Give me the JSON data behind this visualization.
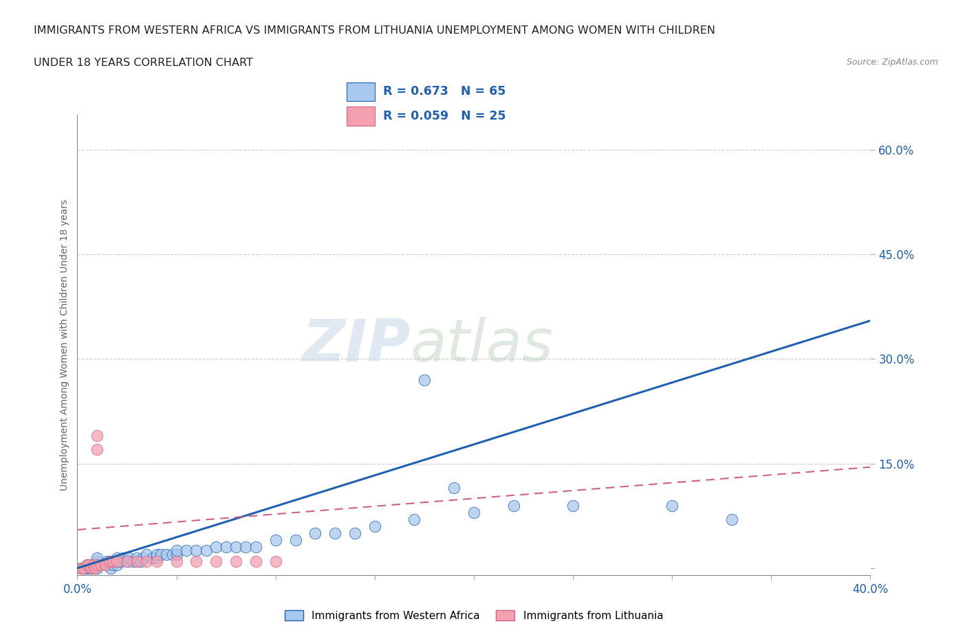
{
  "title_line1": "IMMIGRANTS FROM WESTERN AFRICA VS IMMIGRANTS FROM LITHUANIA UNEMPLOYMENT AMONG WOMEN WITH CHILDREN",
  "title_line2": "UNDER 18 YEARS CORRELATION CHART",
  "source": "Source: ZipAtlas.com",
  "ylabel": "Unemployment Among Women with Children Under 18 years",
  "xlim": [
    0,
    0.4
  ],
  "ylim": [
    -0.01,
    0.65
  ],
  "xticks": [
    0.0,
    0.05,
    0.1,
    0.15,
    0.2,
    0.25,
    0.3,
    0.35,
    0.4
  ],
  "yticks": [
    0.0,
    0.15,
    0.3,
    0.45,
    0.6
  ],
  "blue_R": 0.673,
  "blue_N": 65,
  "pink_R": 0.059,
  "pink_N": 25,
  "blue_color": "#A8C8EE",
  "pink_color": "#F4A0B0",
  "blue_line_color": "#2060B0",
  "pink_line_color": "#D06080",
  "watermark_zip": "ZIP",
  "watermark_atlas": "atlas",
  "background_color": "#ffffff",
  "grid_color": "#cccccc",
  "blue_line_x0": 0.0,
  "blue_line_y0": 0.0,
  "blue_line_x1": 0.4,
  "blue_line_y1": 0.355,
  "pink_line_x0": 0.0,
  "pink_line_y0": 0.055,
  "pink_line_x1": 0.4,
  "pink_line_y1": 0.145,
  "blue_scatter_x": [
    0.002,
    0.003,
    0.004,
    0.005,
    0.005,
    0.006,
    0.007,
    0.007,
    0.008,
    0.008,
    0.009,
    0.009,
    0.01,
    0.01,
    0.01,
    0.01,
    0.015,
    0.015,
    0.016,
    0.017,
    0.018,
    0.019,
    0.02,
    0.02,
    0.02,
    0.022,
    0.023,
    0.025,
    0.026,
    0.028,
    0.03,
    0.03,
    0.032,
    0.033,
    0.035,
    0.038,
    0.04,
    0.04,
    0.042,
    0.045,
    0.048,
    0.05,
    0.05,
    0.055,
    0.06,
    0.065,
    0.07,
    0.075,
    0.08,
    0.085,
    0.09,
    0.1,
    0.11,
    0.12,
    0.13,
    0.14,
    0.15,
    0.17,
    0.2,
    0.22,
    0.25,
    0.3,
    0.33,
    0.175,
    0.19
  ],
  "blue_scatter_y": [
    0.0,
    0.0,
    0.0,
    0.0,
    0.005,
    0.0,
    0.0,
    0.005,
    0.0,
    0.005,
    0.0,
    0.005,
    0.0,
    0.005,
    0.01,
    0.015,
    0.005,
    0.01,
    0.01,
    0.0,
    0.005,
    0.01,
    0.005,
    0.01,
    0.015,
    0.01,
    0.015,
    0.01,
    0.015,
    0.01,
    0.01,
    0.015,
    0.01,
    0.015,
    0.02,
    0.015,
    0.015,
    0.02,
    0.02,
    0.02,
    0.02,
    0.02,
    0.025,
    0.025,
    0.025,
    0.025,
    0.03,
    0.03,
    0.03,
    0.03,
    0.03,
    0.04,
    0.04,
    0.05,
    0.05,
    0.05,
    0.06,
    0.07,
    0.08,
    0.09,
    0.09,
    0.09,
    0.07,
    0.27,
    0.115
  ],
  "pink_scatter_x": [
    0.002,
    0.003,
    0.005,
    0.006,
    0.007,
    0.008,
    0.009,
    0.01,
    0.01,
    0.01,
    0.012,
    0.014,
    0.016,
    0.018,
    0.02,
    0.025,
    0.03,
    0.035,
    0.04,
    0.05,
    0.06,
    0.07,
    0.08,
    0.09,
    0.1
  ],
  "pink_scatter_y": [
    0.0,
    0.0,
    0.005,
    0.005,
    0.0,
    0.005,
    0.0,
    0.005,
    0.17,
    0.19,
    0.005,
    0.005,
    0.01,
    0.01,
    0.01,
    0.01,
    0.01,
    0.01,
    0.01,
    0.01,
    0.01,
    0.01,
    0.01,
    0.01,
    0.01
  ]
}
